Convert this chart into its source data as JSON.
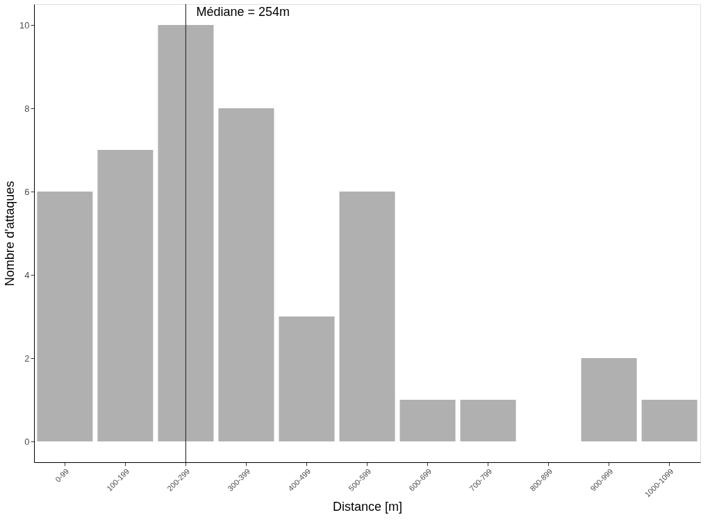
{
  "chart_data": {
    "type": "bar",
    "xlabel": "Distance [m]",
    "ylabel": "Nombre d'attaques",
    "categories": [
      "0-99",
      "100-199",
      "200-299",
      "300-399",
      "400-499",
      "500-599",
      "600-699",
      "700-799",
      "800-899",
      "900-999",
      "1000-1099"
    ],
    "values": [
      6,
      7,
      10,
      8,
      3,
      6,
      1,
      1,
      0,
      2,
      1
    ],
    "color": "#b0b0b0",
    "ylim": [
      -0.5,
      10.5
    ],
    "yticks": [
      0,
      2,
      4,
      6,
      8,
      10
    ],
    "grid": false,
    "ref_lines": [
      {
        "axis": "x",
        "value": "200-299",
        "label": "Médiane = 254m",
        "color": "#333333"
      }
    ]
  }
}
